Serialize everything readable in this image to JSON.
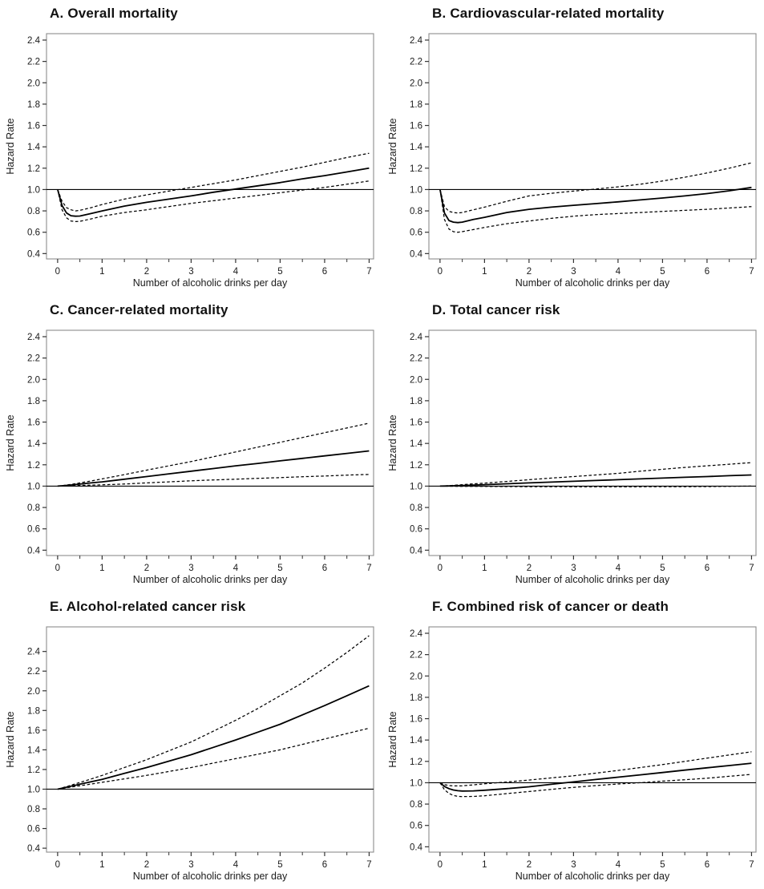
{
  "styles": {
    "background": "#ffffff",
    "line_color": "#000000",
    "frame_color": "#8c8c8c",
    "tick_color": "#333333",
    "text_color": "#1a1a1a"
  },
  "axes": {
    "xlabel": "Number of alcoholic drinks per day",
    "ylabel": "Hazard Rate",
    "x_ticks": [
      "0",
      "1",
      "2",
      "3",
      "4",
      "5",
      "6",
      "7"
    ],
    "x_minor_ticks": [
      0.5,
      1.5,
      2.5,
      3.5,
      4.5,
      5.5,
      6.5
    ],
    "y_ticks": [
      "0.4",
      "0.6",
      "0.8",
      "1.0",
      "1.2",
      "1.4",
      "1.6",
      "1.8",
      "2.0",
      "2.2",
      "2.4"
    ],
    "ref_line": 1.0,
    "grid": false,
    "legend": "none"
  },
  "chart_data": [
    {
      "id": "overall-mortality",
      "type": "line",
      "title": "A. Overall mortality",
      "xlim": [
        -0.25,
        7.1
      ],
      "ylim": [
        0.35,
        2.46
      ],
      "x": [
        0,
        0.1,
        0.2,
        0.3,
        0.4,
        0.5,
        0.75,
        1,
        1.5,
        2,
        2.5,
        3,
        3.5,
        4,
        4.5,
        5,
        5.5,
        6,
        6.5,
        7
      ],
      "series": [
        {
          "name": "hazard-rate",
          "style": "solid",
          "values": [
            1.0,
            0.85,
            0.78,
            0.755,
            0.75,
            0.752,
            0.775,
            0.8,
            0.845,
            0.88,
            0.91,
            0.94,
            0.975,
            1.005,
            1.035,
            1.065,
            1.1,
            1.13,
            1.165,
            1.2
          ]
        },
        {
          "name": "upper-95-ci",
          "style": "dashed",
          "values": [
            1.0,
            0.89,
            0.83,
            0.81,
            0.8,
            0.805,
            0.83,
            0.86,
            0.91,
            0.95,
            0.985,
            1.02,
            1.055,
            1.09,
            1.13,
            1.17,
            1.21,
            1.255,
            1.3,
            1.34
          ]
        },
        {
          "name": "lower-95-ci",
          "style": "dashed",
          "values": [
            1.0,
            0.81,
            0.735,
            0.705,
            0.7,
            0.702,
            0.725,
            0.75,
            0.785,
            0.81,
            0.84,
            0.87,
            0.895,
            0.92,
            0.945,
            0.97,
            0.995,
            1.02,
            1.05,
            1.08
          ]
        }
      ]
    },
    {
      "id": "cardiovascular-mortality",
      "type": "line",
      "title": "B. Cardiovascular-related mortality",
      "xlim": [
        -0.25,
        7.1
      ],
      "ylim": [
        0.35,
        2.46
      ],
      "x": [
        0,
        0.1,
        0.2,
        0.3,
        0.4,
        0.5,
        0.75,
        1,
        1.5,
        2,
        2.5,
        3,
        3.5,
        4,
        4.5,
        5,
        5.5,
        6,
        6.5,
        7
      ],
      "series": [
        {
          "name": "hazard-rate",
          "style": "solid",
          "values": [
            1.0,
            0.78,
            0.71,
            0.695,
            0.69,
            0.695,
            0.72,
            0.74,
            0.785,
            0.815,
            0.835,
            0.852,
            0.868,
            0.885,
            0.903,
            0.921,
            0.94,
            0.962,
            0.988,
            1.02
          ]
        },
        {
          "name": "upper-95-ci",
          "style": "dashed",
          "values": [
            1.0,
            0.84,
            0.795,
            0.785,
            0.78,
            0.785,
            0.81,
            0.835,
            0.89,
            0.94,
            0.965,
            0.985,
            1.005,
            1.025,
            1.05,
            1.08,
            1.115,
            1.155,
            1.2,
            1.25
          ]
        },
        {
          "name": "lower-95-ci",
          "style": "dashed",
          "values": [
            1.0,
            0.72,
            0.63,
            0.605,
            0.6,
            0.605,
            0.625,
            0.645,
            0.68,
            0.705,
            0.73,
            0.75,
            0.765,
            0.775,
            0.785,
            0.795,
            0.805,
            0.815,
            0.827,
            0.84
          ]
        }
      ]
    },
    {
      "id": "cancer-mortality",
      "type": "line",
      "title": "C. Cancer-related mortality",
      "xlim": [
        -0.25,
        7.1
      ],
      "ylim": [
        0.35,
        2.46
      ],
      "x": [
        0,
        0.1,
        0.2,
        0.3,
        0.4,
        0.5,
        0.75,
        1,
        1.5,
        2,
        2.5,
        3,
        3.5,
        4,
        4.5,
        5,
        5.5,
        6,
        6.5,
        7
      ],
      "series": [
        {
          "name": "hazard-rate",
          "style": "solid",
          "values": [
            1.0,
            1.003,
            1.007,
            1.011,
            1.015,
            1.019,
            1.03,
            1.04,
            1.065,
            1.09,
            1.115,
            1.14,
            1.165,
            1.19,
            1.213,
            1.237,
            1.26,
            1.283,
            1.307,
            1.33
          ]
        },
        {
          "name": "upper-95-ci",
          "style": "dashed",
          "values": [
            1.0,
            1.005,
            1.011,
            1.017,
            1.023,
            1.03,
            1.048,
            1.068,
            1.108,
            1.15,
            1.19,
            1.23,
            1.275,
            1.32,
            1.365,
            1.41,
            1.455,
            1.5,
            1.545,
            1.59
          ]
        },
        {
          "name": "lower-95-ci",
          "style": "dashed",
          "values": [
            1.0,
            1.001,
            1.002,
            1.004,
            1.005,
            1.007,
            1.009,
            1.012,
            1.02,
            1.03,
            1.04,
            1.05,
            1.058,
            1.065,
            1.073,
            1.08,
            1.088,
            1.095,
            1.103,
            1.11
          ]
        }
      ]
    },
    {
      "id": "total-cancer-risk",
      "type": "line",
      "title": "D. Total cancer risk",
      "xlim": [
        -0.25,
        7.1
      ],
      "ylim": [
        0.35,
        2.46
      ],
      "x": [
        0,
        0.1,
        0.2,
        0.3,
        0.4,
        0.5,
        0.75,
        1,
        1.5,
        2,
        2.5,
        3,
        3.5,
        4,
        4.5,
        5,
        5.5,
        6,
        6.5,
        7
      ],
      "series": [
        {
          "name": "hazard-rate",
          "style": "solid",
          "values": [
            1.0,
            1.001,
            1.002,
            1.003,
            1.005,
            1.006,
            1.01,
            1.014,
            1.022,
            1.03,
            1.038,
            1.045,
            1.053,
            1.06,
            1.068,
            1.075,
            1.083,
            1.09,
            1.098,
            1.105
          ]
        },
        {
          "name": "upper-95-ci",
          "style": "dashed",
          "values": [
            1.0,
            1.002,
            1.005,
            1.008,
            1.011,
            1.014,
            1.021,
            1.028,
            1.044,
            1.06,
            1.075,
            1.09,
            1.105,
            1.12,
            1.14,
            1.158,
            1.175,
            1.19,
            1.205,
            1.22
          ]
        },
        {
          "name": "lower-95-ci",
          "style": "dashed",
          "values": [
            1.0,
            1.0,
            0.999,
            0.999,
            0.998,
            0.998,
            0.997,
            0.997,
            0.996,
            0.995,
            0.995,
            0.994,
            0.994,
            0.994,
            0.994,
            0.995,
            0.995,
            0.996,
            0.998,
            1.0
          ]
        }
      ]
    },
    {
      "id": "alcohol-related-cancer-risk",
      "type": "line",
      "title": "E. Alcohol-related cancer risk",
      "xlim": [
        -0.25,
        7.1
      ],
      "ylim": [
        0.36,
        2.65
      ],
      "x": [
        0,
        0.1,
        0.2,
        0.3,
        0.4,
        0.5,
        0.75,
        1,
        1.5,
        2,
        2.5,
        3,
        3.5,
        4,
        4.5,
        5,
        5.5,
        6,
        6.5,
        7
      ],
      "series": [
        {
          "name": "hazard-rate",
          "style": "solid",
          "values": [
            1.0,
            1.01,
            1.02,
            1.03,
            1.04,
            1.05,
            1.075,
            1.1,
            1.16,
            1.22,
            1.285,
            1.35,
            1.425,
            1.5,
            1.58,
            1.66,
            1.755,
            1.85,
            1.95,
            2.05
          ]
        },
        {
          "name": "upper-95-ci",
          "style": "dashed",
          "values": [
            1.0,
            1.013,
            1.026,
            1.04,
            1.054,
            1.068,
            1.103,
            1.14,
            1.22,
            1.3,
            1.39,
            1.48,
            1.59,
            1.7,
            1.82,
            1.95,
            2.08,
            2.23,
            2.39,
            2.56
          ]
        },
        {
          "name": "lower-95-ci",
          "style": "dashed",
          "values": [
            1.0,
            1.007,
            1.014,
            1.021,
            1.028,
            1.035,
            1.052,
            1.07,
            1.105,
            1.14,
            1.18,
            1.22,
            1.265,
            1.31,
            1.355,
            1.4,
            1.455,
            1.51,
            1.565,
            1.62
          ]
        }
      ]
    },
    {
      "id": "combined-risk-cancer-or-death",
      "type": "line",
      "title": "F. Combined risk of cancer or death",
      "xlim": [
        -0.25,
        7.1
      ],
      "ylim": [
        0.35,
        2.46
      ],
      "x": [
        0,
        0.1,
        0.2,
        0.3,
        0.4,
        0.5,
        0.75,
        1,
        1.5,
        2,
        2.5,
        3,
        3.5,
        4,
        4.5,
        5,
        5.5,
        6,
        6.5,
        7
      ],
      "series": [
        {
          "name": "hazard-rate",
          "style": "solid",
          "values": [
            1.0,
            0.965,
            0.945,
            0.932,
            0.925,
            0.922,
            0.924,
            0.93,
            0.945,
            0.962,
            0.985,
            1.008,
            1.03,
            1.052,
            1.074,
            1.096,
            1.118,
            1.14,
            1.161,
            1.183
          ]
        },
        {
          "name": "upper-95-ci",
          "style": "dashed",
          "values": [
            1.0,
            0.982,
            0.974,
            0.97,
            0.97,
            0.972,
            0.98,
            0.99,
            1.007,
            1.025,
            1.045,
            1.065,
            1.09,
            1.115,
            1.142,
            1.17,
            1.2,
            1.23,
            1.26,
            1.29
          ]
        },
        {
          "name": "lower-95-ci",
          "style": "dashed",
          "values": [
            1.0,
            0.935,
            0.9,
            0.882,
            0.872,
            0.87,
            0.872,
            0.878,
            0.898,
            0.918,
            0.938,
            0.957,
            0.973,
            0.988,
            1.0,
            1.015,
            1.028,
            1.042,
            1.06,
            1.078
          ]
        }
      ]
    }
  ]
}
